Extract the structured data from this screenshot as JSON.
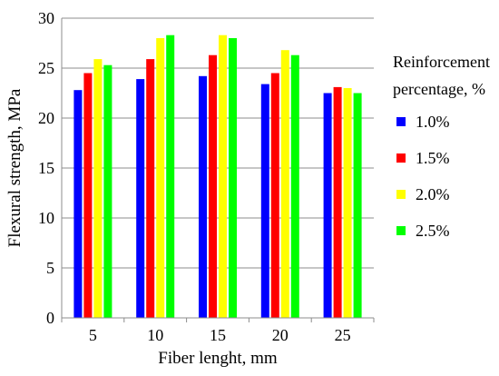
{
  "chart_data": {
    "type": "bar",
    "title": "",
    "xlabel": "Fiber lenght, mm",
    "ylabel": "Flexural strength, MPa",
    "categories": [
      "5",
      "10",
      "15",
      "20",
      "25"
    ],
    "ylim": [
      0,
      30
    ],
    "yticks": [
      "0",
      "5",
      "10",
      "15",
      "20",
      "25",
      "30"
    ],
    "grid": true,
    "legend_position": "right",
    "legend_title": [
      "Reinforcement",
      "percentage, %"
    ],
    "series": [
      {
        "name": "1.0%",
        "color": "#0000ff",
        "values": [
          22.8,
          23.9,
          24.2,
          23.4,
          22.5
        ]
      },
      {
        "name": "1.5%",
        "color": "#ff0000",
        "values": [
          24.5,
          25.9,
          26.3,
          24.5,
          23.1
        ]
      },
      {
        "name": "2.0%",
        "color": "#ffff00",
        "values": [
          25.9,
          28.0,
          28.3,
          26.8,
          23.0
        ]
      },
      {
        "name": "2.5%",
        "color": "#00ff00",
        "values": [
          25.3,
          28.3,
          28.0,
          26.3,
          22.5
        ]
      }
    ]
  }
}
